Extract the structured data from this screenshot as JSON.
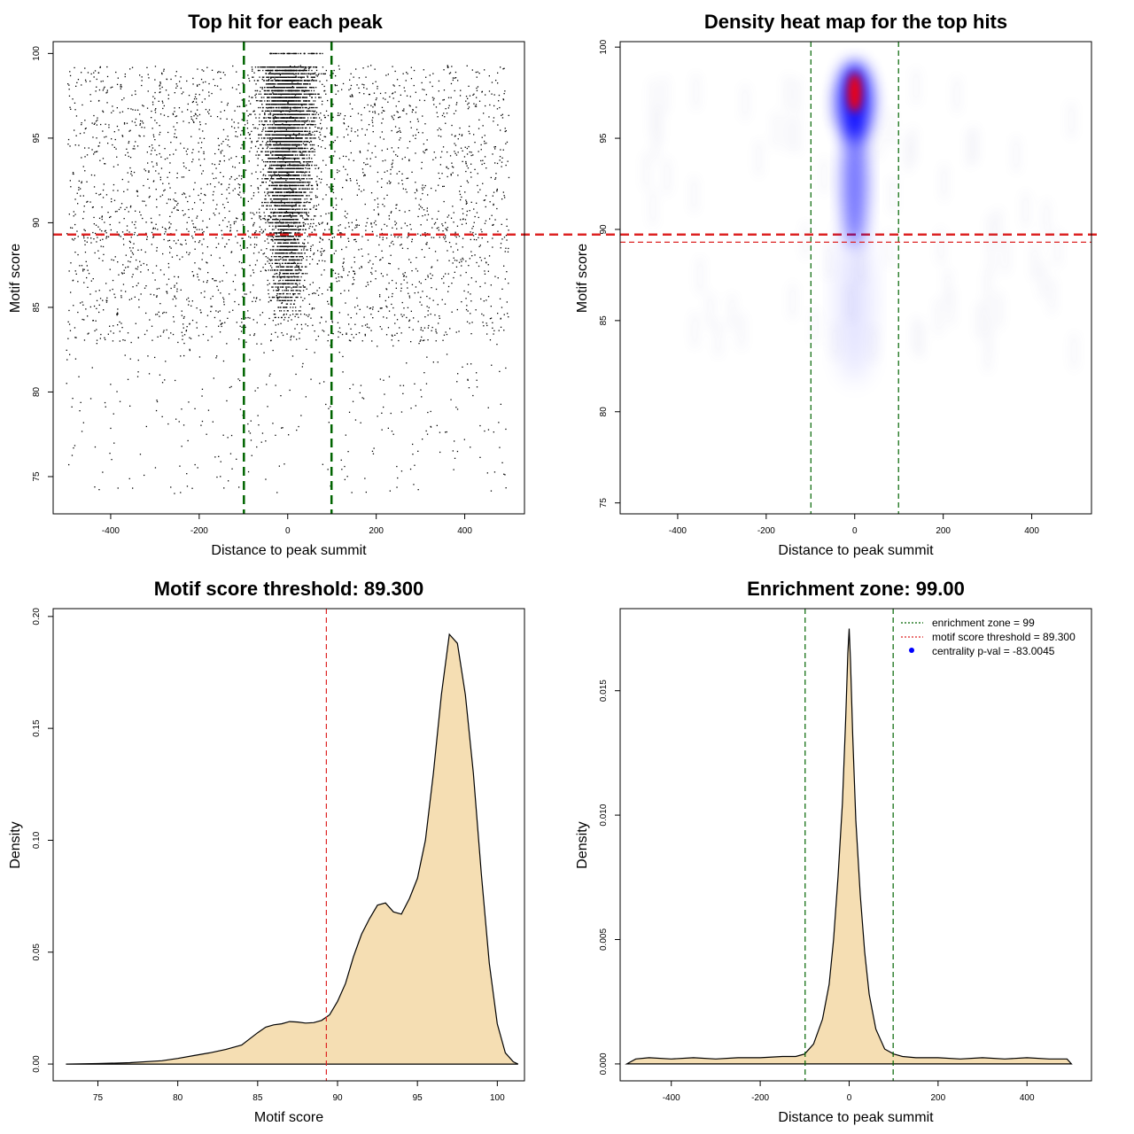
{
  "colors": {
    "threshold_red": "#dd2222",
    "zone_green": "#006400",
    "fill_wheat": "#f5deb3",
    "heat_blue": "#0000ff",
    "heat_red": "#ff0000",
    "points": "#000000"
  },
  "chart_data": [
    {
      "id": "scatter",
      "type": "scatter",
      "title": "Top hit for each peak",
      "xlabel": "Distance to peak summit",
      "ylabel": "Motif score",
      "xlim": [
        -530,
        535
      ],
      "ylim": [
        72.8,
        100.7
      ],
      "xticks": [
        -400,
        -200,
        0,
        200,
        400
      ],
      "xtick_labels": [
        "-400",
        "-200",
        "0",
        "200",
        "400"
      ],
      "yticks": [
        75,
        80,
        85,
        90,
        95,
        100
      ],
      "ytick_labels": [
        "75",
        "80",
        "85",
        "90",
        "95",
        "100"
      ],
      "vlines": [
        -99,
        99
      ],
      "hline": 89.3,
      "point_summary": {
        "central_range": [
          -99,
          99
        ],
        "central_score_range": [
          84,
          100
        ],
        "background_x_range": [
          -500,
          500
        ],
        "background_score_range": [
          74,
          99.3
        ],
        "approx_points": 9000
      }
    },
    {
      "id": "heatmap",
      "type": "heatmap",
      "title": "Density heat map for the top hits",
      "xlabel": "Distance to peak summit",
      "ylabel": "Motif score",
      "xlim": [
        -530,
        535
      ],
      "ylim": [
        74.4,
        100.3
      ],
      "xticks": [
        -400,
        -200,
        0,
        200,
        400
      ],
      "xtick_labels": [
        "-400",
        "-200",
        "0",
        "200",
        "400"
      ],
      "yticks": [
        75,
        80,
        85,
        90,
        95,
        100
      ],
      "ytick_labels": [
        "75",
        "80",
        "85",
        "90",
        "95",
        "100"
      ],
      "vlines": [
        -99,
        99
      ],
      "hline": 89.3,
      "hotspot": {
        "x": 0,
        "y": 97.5
      },
      "color_scale": [
        "#ffffff",
        "#0000ff",
        "#ff0000"
      ]
    },
    {
      "id": "score_density",
      "type": "area",
      "title": "Motif score threshold: 89.300",
      "xlabel": "Motif score",
      "ylabel": "Density",
      "xlim": [
        72.2,
        101.7
      ],
      "ylim": [
        -0.0075,
        0.2035
      ],
      "xticks": [
        75,
        80,
        85,
        90,
        95,
        100
      ],
      "xtick_labels": [
        "75",
        "80",
        "85",
        "90",
        "95",
        "100"
      ],
      "yticks": [
        0,
        0.05,
        0.1,
        0.15,
        0.2
      ],
      "ytick_labels": [
        "0.00",
        "0.05",
        "0.10",
        "0.15",
        "0.20"
      ],
      "vline": 89.3,
      "x": [
        73,
        75,
        77,
        79,
        80,
        81,
        82,
        83,
        84,
        85,
        85.5,
        86,
        86.5,
        87,
        87.5,
        88,
        88.5,
        89,
        89.5,
        90,
        90.5,
        91,
        91.5,
        92,
        92.5,
        93,
        93.5,
        94,
        94.5,
        95,
        95.5,
        96,
        96.5,
        97,
        97.5,
        98,
        98.5,
        99,
        99.5,
        100,
        100.5,
        101,
        101.3
      ],
      "y": [
        0.0,
        0.0002,
        0.0006,
        0.0015,
        0.0025,
        0.0038,
        0.005,
        0.0065,
        0.0085,
        0.014,
        0.0165,
        0.0175,
        0.018,
        0.019,
        0.0188,
        0.0183,
        0.0185,
        0.0195,
        0.022,
        0.028,
        0.036,
        0.048,
        0.058,
        0.065,
        0.071,
        0.072,
        0.068,
        0.067,
        0.074,
        0.083,
        0.1,
        0.13,
        0.165,
        0.192,
        0.188,
        0.165,
        0.13,
        0.085,
        0.045,
        0.018,
        0.005,
        0.001,
        0.0
      ]
    },
    {
      "id": "distance_density",
      "type": "area",
      "title": "Enrichment zone: 99.00",
      "xlabel": "Distance to peak summit",
      "ylabel": "Density",
      "xlim": [
        -515,
        545
      ],
      "ylim": [
        -0.00068,
        0.0183
      ],
      "xticks": [
        -400,
        -200,
        0,
        200,
        400
      ],
      "xtick_labels": [
        "-400",
        "-200",
        "0",
        "200",
        "400"
      ],
      "yticks": [
        0,
        0.005,
        0.01,
        0.015
      ],
      "ytick_labels": [
        "0.000",
        "0.005",
        "0.010",
        "0.015"
      ],
      "vlines": [
        -99,
        99
      ],
      "x": [
        -500,
        -480,
        -450,
        -400,
        -350,
        -300,
        -250,
        -200,
        -150,
        -120,
        -100,
        -80,
        -60,
        -45,
        -35,
        -25,
        -15,
        -8,
        -3,
        0,
        3,
        8,
        15,
        25,
        35,
        45,
        60,
        80,
        100,
        120,
        150,
        200,
        250,
        300,
        350,
        400,
        450,
        490,
        500
      ],
      "y": [
        0.0,
        0.0002,
        0.00025,
        0.0002,
        0.00025,
        0.0002,
        0.00025,
        0.00025,
        0.0003,
        0.0003,
        0.0004,
        0.0008,
        0.0018,
        0.0032,
        0.005,
        0.0075,
        0.0105,
        0.0138,
        0.0165,
        0.0175,
        0.0162,
        0.0132,
        0.0098,
        0.0068,
        0.0045,
        0.0028,
        0.0014,
        0.0006,
        0.0004,
        0.0003,
        0.00025,
        0.00025,
        0.0002,
        0.00025,
        0.0002,
        0.00025,
        0.0002,
        0.0002,
        0.0
      ],
      "legend": {
        "position": "top-right",
        "entries": [
          {
            "label": "enrichment zone = 99",
            "color": "#006400",
            "style": "dotted-line"
          },
          {
            "label": "motif score threshold = 89.300",
            "color": "#dd2222",
            "style": "dotted-line"
          },
          {
            "label": "centrality p-val = -83.0045",
            "color": "#0000ff",
            "style": "dot"
          }
        ]
      }
    }
  ]
}
